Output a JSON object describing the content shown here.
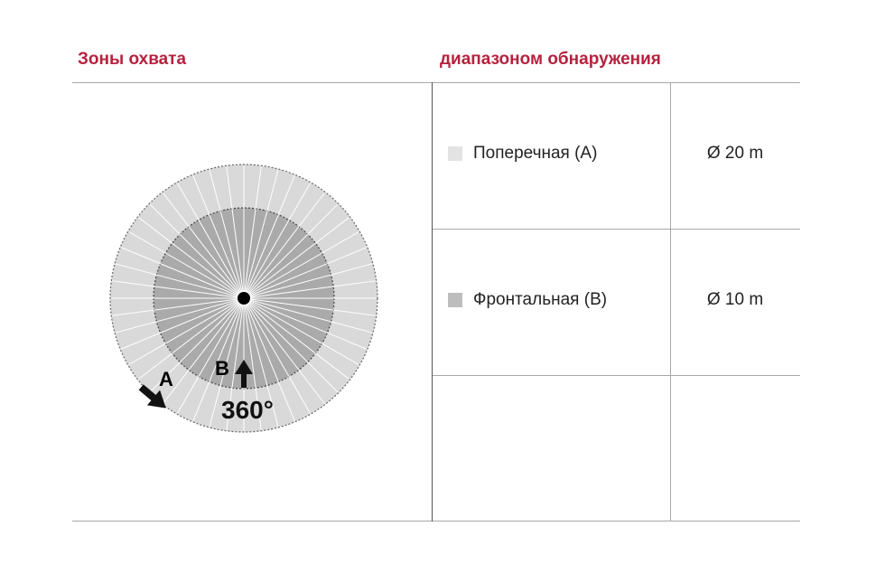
{
  "headers": {
    "left": "Зоны охвата",
    "right": "диапазоном обнаружения"
  },
  "rows": [
    {
      "label": "Поперечная (A)",
      "value": "Ø 20 m",
      "swatch": "#e3e3e3"
    },
    {
      "label": "Фронтальная (B)",
      "value": "Ø 10 m",
      "swatch": "#bdbdbd"
    }
  ],
  "diagram": {
    "label_a": "A",
    "label_b": "B",
    "angle": "360°",
    "outer_color": "#d9d9d9",
    "inner_color": "#aaaaaa"
  }
}
